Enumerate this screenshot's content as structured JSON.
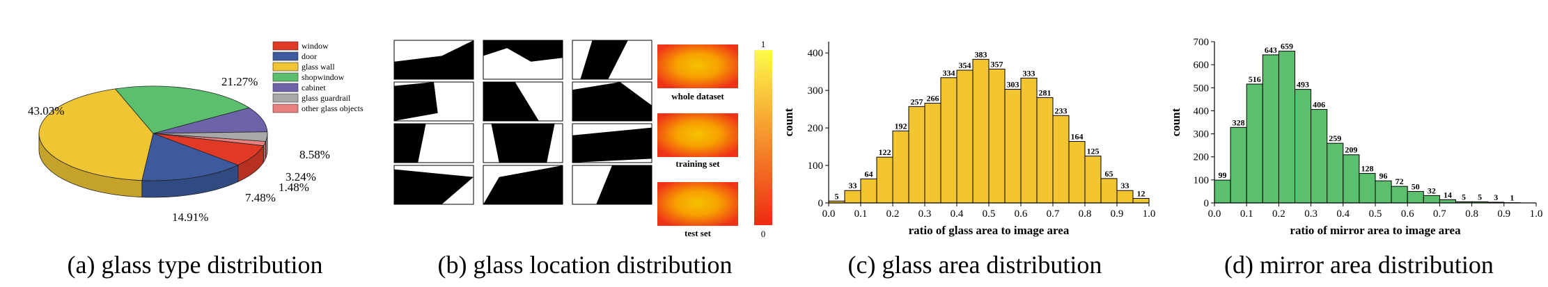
{
  "captions": {
    "a": "(a) glass type distribution",
    "b": "(b) glass location distribution",
    "c": "(c) glass area distribution",
    "d": "(d) mirror area distribution"
  },
  "location": {
    "whole_label": "whole dataset",
    "training_label": "training set",
    "test_label": "test set",
    "colorbar_max": "1",
    "colorbar_min": "0",
    "colors": {
      "hot": "#f5c200",
      "warm": "#f7a000",
      "edge": "#ee3318",
      "bar_top": "#fdfb4a",
      "bar_bottom": "#ee2a12"
    }
  },
  "chart_data": [
    {
      "type": "pie",
      "title": "glass type distribution",
      "labels": [
        "window",
        "door",
        "glass wall",
        "shopwindow",
        "cabinet",
        "glass guardrail",
        "other glass objects"
      ],
      "values": [
        7.48,
        14.91,
        43.03,
        21.27,
        8.58,
        3.24,
        1.48
      ],
      "value_labels": [
        "7.48%",
        "14.91%",
        "43.03%",
        "21.27%",
        "8.58%",
        "3.24%",
        "1.48%"
      ],
      "colors": [
        "#e03a26",
        "#3d5a9e",
        "#f0c533",
        "#5cbf6e",
        "#6c63a8",
        "#a8a8a8",
        "#e88080"
      ],
      "legend_position": "top-right"
    },
    {
      "type": "bar",
      "title": "glass area distribution",
      "xlabel": "ratio of glass area to image area",
      "ylabel": "count",
      "x_ticks": [
        "0.0",
        "0.1",
        "0.2",
        "0.3",
        "0.4",
        "0.5",
        "0.6",
        "0.7",
        "0.8",
        "0.9",
        "1.0"
      ],
      "y_ticks": [
        "0",
        "100",
        "200",
        "300",
        "400"
      ],
      "xlim": [
        0,
        1
      ],
      "ylim": [
        0,
        430
      ],
      "bin_width": 0.05,
      "values": [
        5,
        33,
        64,
        122,
        192,
        257,
        266,
        334,
        354,
        383,
        357,
        303,
        333,
        281,
        233,
        164,
        125,
        65,
        33,
        12
      ],
      "bar_color": "#f2c531"
    },
    {
      "type": "bar",
      "title": "mirror area distribution",
      "xlabel": "ratio of mirror area to image area",
      "ylabel": "count",
      "x_ticks": [
        "0.0",
        "0.1",
        "0.2",
        "0.3",
        "0.4",
        "0.5",
        "0.6",
        "0.7",
        "0.8",
        "0.9",
        "1.0"
      ],
      "y_ticks": [
        "0",
        "100",
        "200",
        "300",
        "400",
        "500",
        "600",
        "700"
      ],
      "xlim": [
        0,
        1
      ],
      "ylim": [
        0,
        700
      ],
      "bin_width": 0.05,
      "values": [
        99,
        328,
        516,
        643,
        659,
        493,
        406,
        259,
        209,
        128,
        96,
        72,
        50,
        32,
        14,
        5,
        5,
        3,
        1,
        0
      ],
      "value_labels": [
        "99",
        "328",
        "516",
        "643",
        "659",
        "493",
        "406",
        "259",
        "209",
        "128",
        "96",
        "72",
        "50",
        "32",
        "14",
        "5",
        "5",
        "3",
        "1",
        ""
      ],
      "bar_color": "#5cbf6e"
    }
  ]
}
